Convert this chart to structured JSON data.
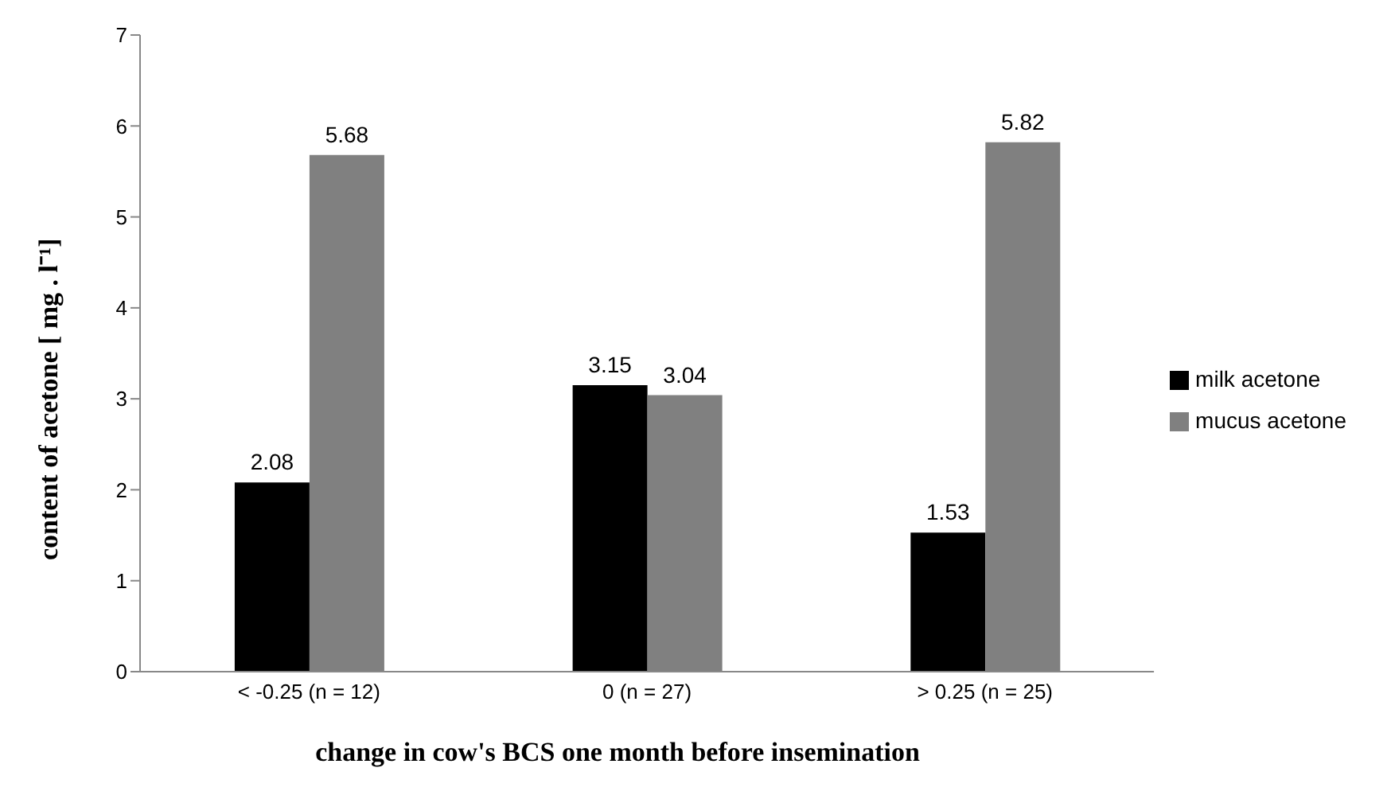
{
  "chart_data": {
    "type": "bar",
    "xlabel": "change in cow's BCS one month before insemination",
    "ylabel": "content of acetone [ mg . l⁻¹]",
    "categories": [
      "< -0.25 (n = 12)",
      "0 (n = 27)",
      "> 0.25 (n = 25)"
    ],
    "series": [
      {
        "name": "milk acetone",
        "color": "#000000",
        "values": [
          2.08,
          3.15,
          1.53
        ]
      },
      {
        "name": "mucus acetone",
        "color": "#808080",
        "values": [
          5.68,
          3.04,
          5.82
        ]
      }
    ],
    "ylim": [
      0,
      7
    ],
    "yticks": [
      0,
      1,
      2,
      3,
      4,
      5,
      6,
      7
    ],
    "grid": false,
    "legend": "right",
    "data_labels": true
  }
}
